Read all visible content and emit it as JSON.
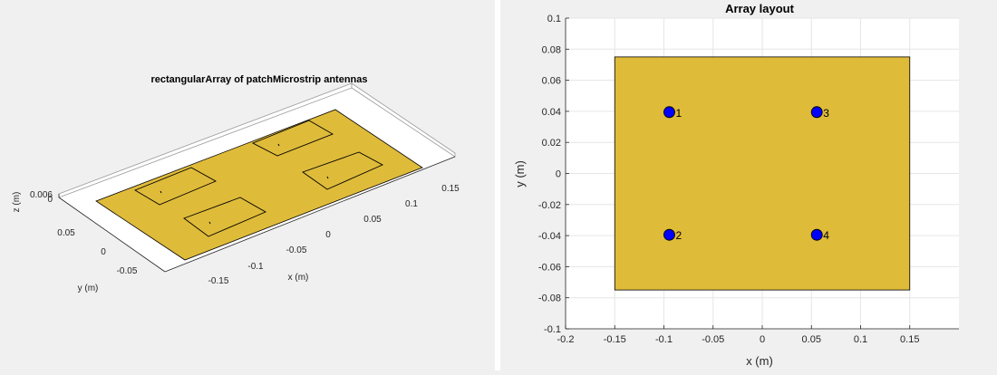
{
  "chart_data": [
    {
      "type": "scatter",
      "subtype": "3d-geometry",
      "title": "rectangularArray of patchMicrostrip antennas",
      "xlabel": "x (m)",
      "ylabel": "y (m)",
      "zlabel": "z (m)",
      "x_ticks": [
        "-0.15",
        "-0.1",
        "-0.05",
        "0",
        "0.05",
        "0.1",
        "0.15"
      ],
      "y_ticks": [
        "-0.05",
        "0",
        "0.05"
      ],
      "z_ticks": [
        "0",
        "0.006"
      ],
      "ground_plane": {
        "x": [
          -0.15,
          0.15
        ],
        "y": [
          -0.075,
          0.075
        ],
        "color": "#dfbb3a"
      },
      "patches": [
        {
          "x": -0.0945,
          "y": 0.0395
        },
        {
          "x": -0.0945,
          "y": -0.0395
        },
        {
          "x": 0.0555,
          "y": 0.0395
        },
        {
          "x": 0.0555,
          "y": -0.0395
        }
      ],
      "patch_size": {
        "length": 0.075,
        "width": 0.0375
      }
    },
    {
      "type": "scatter",
      "title": "Array layout",
      "xlabel": "x (m)",
      "ylabel": "y (m)",
      "xlim": [
        -0.2,
        0.2
      ],
      "ylim": [
        -0.1,
        0.1
      ],
      "x_ticks": [
        -0.2,
        -0.15,
        -0.1,
        -0.05,
        0,
        0.05,
        0.1,
        0.15
      ],
      "x_tick_labels": [
        "-0.2",
        "-0.15",
        "-0.1",
        "-0.05",
        "0",
        "0.05",
        "0.1",
        "0.15"
      ],
      "y_ticks": [
        0.1,
        0.08,
        0.06,
        0.04,
        0.02,
        0,
        -0.02,
        -0.04,
        -0.06,
        -0.08,
        -0.1
      ],
      "y_tick_labels": [
        "0.1",
        "0.08",
        "0.06",
        "0.04",
        "0.02",
        "0",
        "-0.02",
        "-0.04",
        "-0.06",
        "-0.08",
        "-0.1"
      ],
      "grid": true,
      "ground_plane": {
        "x": [
          -0.15,
          0.15
        ],
        "y": [
          -0.075,
          0.075
        ],
        "color": "#dfbb3a"
      },
      "points": [
        {
          "label": "1",
          "x": -0.0945,
          "y": 0.0395
        },
        {
          "label": "2",
          "x": -0.0945,
          "y": -0.0395
        },
        {
          "label": "3",
          "x": 0.0555,
          "y": 0.0395
        },
        {
          "label": "4",
          "x": 0.0555,
          "y": -0.0395
        }
      ],
      "marker_color": "#0000ff"
    }
  ]
}
